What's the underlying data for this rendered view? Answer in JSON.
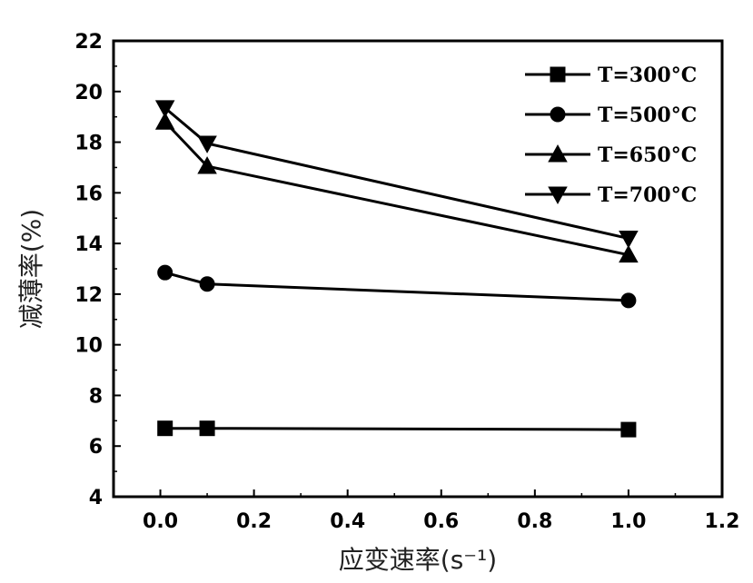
{
  "chart_data": {
    "type": "line",
    "xlabel": "应变速率(s⁻¹)",
    "ylabel": "减薄率(%)",
    "xlim": [
      -0.1,
      1.2
    ],
    "ylim": [
      4,
      22
    ],
    "xticks": [
      0.0,
      0.2,
      0.4,
      0.6,
      0.8,
      1.0,
      1.2
    ],
    "xtick_labels": [
      "0.0",
      "0.2",
      "0.4",
      "0.6",
      "0.8",
      "1.0",
      "1.2"
    ],
    "yticks": [
      4,
      6,
      8,
      10,
      12,
      14,
      16,
      18,
      20,
      22
    ],
    "ytick_labels": [
      "4",
      "6",
      "8",
      "10",
      "12",
      "14",
      "16",
      "18",
      "20",
      "22"
    ],
    "grid": false,
    "legend_position": "top-right",
    "series": [
      {
        "name": "T=300°C",
        "marker": "square",
        "x": [
          0.01,
          0.1,
          1.0
        ],
        "y": [
          6.7,
          6.7,
          6.65
        ]
      },
      {
        "name": "T=500°C",
        "marker": "circle",
        "x": [
          0.01,
          0.1,
          1.0
        ],
        "y": [
          12.85,
          12.4,
          11.75
        ]
      },
      {
        "name": "T=650°C",
        "marker": "triangle-up",
        "x": [
          0.01,
          0.1,
          1.0
        ],
        "y": [
          18.8,
          17.05,
          13.55
        ]
      },
      {
        "name": "T=700°C",
        "marker": "triangle-down",
        "x": [
          0.01,
          0.1,
          1.0
        ],
        "y": [
          19.35,
          17.95,
          14.2
        ]
      }
    ]
  }
}
